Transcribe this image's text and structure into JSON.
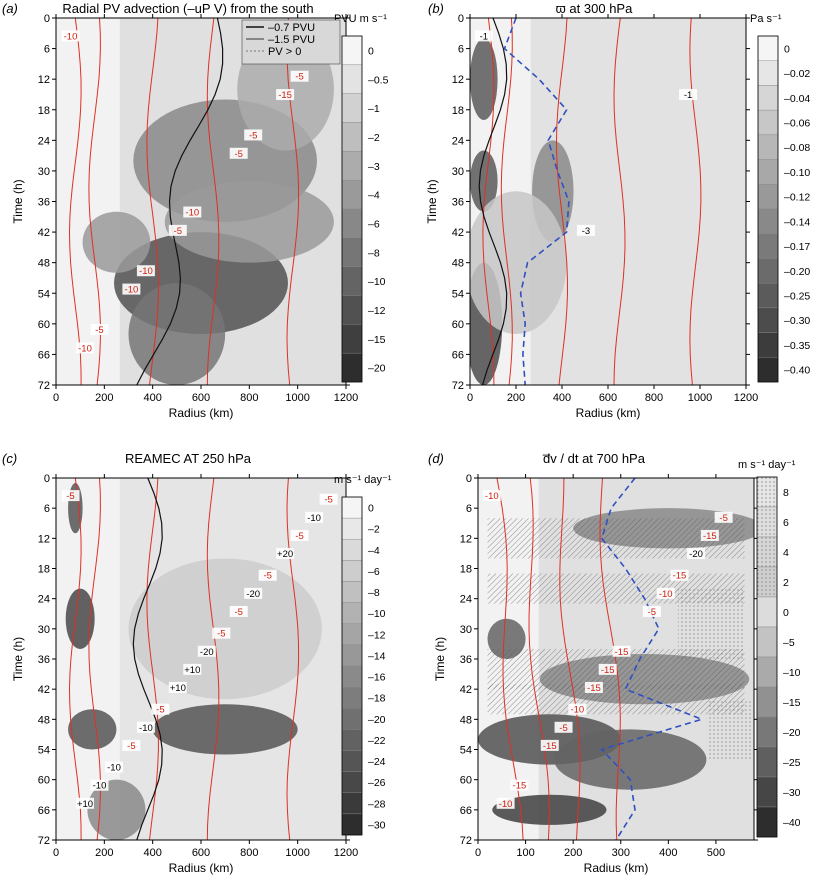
{
  "figure": "Four-panel time–radius Hovmöller diagrams",
  "chart_data": [
    {
      "type": "heatmap",
      "panel_label": "(a)",
      "title": "Radial PV advection (–uP V) from the south",
      "xlabel": "Radius (km)",
      "ylabel": "Time (h)",
      "x_ticks": [
        0,
        200,
        400,
        600,
        800,
        1000,
        1200
      ],
      "y_ticks": [
        0,
        6,
        12,
        18,
        24,
        30,
        36,
        42,
        48,
        54,
        60,
        66,
        72
      ],
      "xlim": [
        0,
        1200
      ],
      "ylim": [
        72,
        0
      ],
      "colorbar": {
        "unit": "PVU m s⁻¹",
        "levels": [
          "0",
          "–0.5",
          "–1",
          "–2",
          "–3",
          "–4",
          "–6",
          "–8",
          "–10",
          "–12",
          "–15",
          "–20"
        ]
      },
      "legend": [
        "–0.7 PVU",
        "–1.5 PVU",
        "PV > 0"
      ],
      "legend_position": "top-right",
      "contour_labels": [
        "-10",
        "-5",
        "-15",
        "-10",
        "-5",
        "-10",
        "-10",
        "-5",
        "-10",
        "-5",
        "-5"
      ],
      "shading_blobs": [
        {
          "x": 600,
          "y": 52,
          "rx": 360,
          "ry": 10,
          "level": 9
        },
        {
          "x": 700,
          "y": 28,
          "rx": 380,
          "ry": 12,
          "level": 6
        },
        {
          "x": 500,
          "y": 62,
          "rx": 200,
          "ry": 10,
          "level": 7
        },
        {
          "x": 950,
          "y": 14,
          "rx": 200,
          "ry": 12,
          "level": 4
        },
        {
          "x": 250,
          "y": 44,
          "rx": 140,
          "ry": 6,
          "level": 5
        },
        {
          "x": 800,
          "y": 40,
          "rx": 350,
          "ry": 8,
          "level": 5
        }
      ]
    },
    {
      "type": "heatmap",
      "panel_label": "(b)",
      "title": "ϖ at 300 hPa",
      "xlabel": "Radius (km)",
      "ylabel": "Time (h)",
      "x_ticks": [
        0,
        200,
        400,
        600,
        800,
        1000,
        1200
      ],
      "y_ticks": [
        0,
        6,
        12,
        18,
        24,
        30,
        36,
        42,
        48,
        54,
        60,
        66,
        72
      ],
      "xlim": [
        0,
        1200
      ],
      "ylim": [
        72,
        0
      ],
      "colorbar": {
        "unit": "Pa s⁻¹",
        "levels": [
          "0",
          "–0.02",
          "–0.04",
          "–0.06",
          "–0.08",
          "–0.10",
          "–0.12",
          "–0.14",
          "–0.17",
          "–0.20",
          "–0.25",
          "–0.30",
          "–0.35",
          "–0.40"
        ]
      },
      "contour_labels": [
        "-1",
        "-3",
        "-1"
      ],
      "rmw_line": {
        "time": [
          0,
          6,
          12,
          18,
          24,
          30,
          36,
          42,
          48,
          54,
          60,
          66,
          72
        ],
        "radius": [
          200,
          150,
          300,
          420,
          340,
          380,
          430,
          420,
          250,
          220,
          240,
          230,
          240
        ]
      },
      "shading_blobs": [
        {
          "x": 60,
          "y": 60,
          "rx": 80,
          "ry": 12,
          "level": 11
        },
        {
          "x": 60,
          "y": 32,
          "rx": 60,
          "ry": 6,
          "level": 10
        },
        {
          "x": 60,
          "y": 12,
          "rx": 60,
          "ry": 8,
          "level": 10
        },
        {
          "x": 360,
          "y": 34,
          "rx": 90,
          "ry": 10,
          "level": 7
        },
        {
          "x": 200,
          "y": 48,
          "rx": 220,
          "ry": 14,
          "level": 3
        }
      ]
    },
    {
      "type": "heatmap",
      "panel_label": "(c)",
      "title": "REAMEC AT 250 hPa",
      "xlabel": "Radius (km)",
      "ylabel": "Time (h)",
      "x_ticks": [
        0,
        200,
        400,
        600,
        800,
        1000,
        1200
      ],
      "y_ticks": [
        0,
        6,
        12,
        18,
        24,
        30,
        36,
        42,
        48,
        54,
        60,
        66,
        72
      ],
      "xlim": [
        0,
        1200
      ],
      "ylim": [
        72,
        0
      ],
      "colorbar": {
        "unit": "m s⁻¹ day⁻¹",
        "levels": [
          "0",
          "–2",
          "–4",
          "–6",
          "–8",
          "–10",
          "–12",
          "–14",
          "–16",
          "–18",
          "–20",
          "–22",
          "–24",
          "–26",
          "–28",
          "–30"
        ]
      },
      "contour_labels": [
        "-5",
        "+10",
        "+20",
        "-5",
        "-5",
        "+10",
        "+10",
        "-5",
        "-10",
        "-20",
        "-10",
        "-20",
        "-10",
        "-5",
        "-5",
        "-10",
        "-5",
        "-5"
      ],
      "shading_blobs": [
        {
          "x": 700,
          "y": 50,
          "rx": 300,
          "ry": 5,
          "level": 12
        },
        {
          "x": 100,
          "y": 28,
          "rx": 60,
          "ry": 6,
          "level": 13
        },
        {
          "x": 150,
          "y": 50,
          "rx": 100,
          "ry": 4,
          "level": 12
        },
        {
          "x": 80,
          "y": 6,
          "rx": 30,
          "ry": 5,
          "level": 12
        },
        {
          "x": 250,
          "y": 66,
          "rx": 120,
          "ry": 6,
          "level": 8
        },
        {
          "x": 700,
          "y": 30,
          "rx": 400,
          "ry": 14,
          "level": 3
        }
      ]
    },
    {
      "type": "heatmap",
      "panel_label": "(d)",
      "title": "d̅v / dt at 700 hPa",
      "xlabel": "Radius (km)",
      "ylabel": "Time (h)",
      "x_ticks": [
        0,
        100,
        200,
        300,
        400,
        500
      ],
      "y_ticks": [
        0,
        6,
        12,
        18,
        24,
        30,
        36,
        42,
        48,
        54,
        60,
        66,
        72
      ],
      "xlim": [
        0,
        580
      ],
      "ylim": [
        72,
        0
      ],
      "colorbar": {
        "unit": "m s⁻¹ day⁻¹",
        "levels": [
          "8",
          "6",
          "4",
          "2",
          "0",
          "–5",
          "–10",
          "–15",
          "–20",
          "–25",
          "–30",
          "–40"
        ]
      },
      "contour_labels": [
        "-10",
        "-15",
        "-20",
        "-15",
        "-5",
        "-10",
        "-15",
        "-15",
        "-5",
        "-10",
        "-15",
        "-15",
        "-5",
        "-10",
        "-15"
      ],
      "rmw_line": {
        "time": [
          0,
          6,
          12,
          18,
          24,
          30,
          36,
          42,
          48,
          54,
          60,
          66,
          72
        ],
        "radius": [
          330,
          280,
          260,
          310,
          350,
          380,
          340,
          310,
          470,
          260,
          320,
          330,
          290
        ]
      },
      "shading_blobs": [
        {
          "x": 150,
          "y": 52,
          "rx": 150,
          "ry": 5,
          "level": 9
        },
        {
          "x": 150,
          "y": 66,
          "rx": 120,
          "ry": 3,
          "level": 10
        },
        {
          "x": 320,
          "y": 56,
          "rx": 160,
          "ry": 6,
          "level": 8
        },
        {
          "x": 60,
          "y": 32,
          "rx": 40,
          "ry": 4,
          "level": 8
        },
        {
          "x": 350,
          "y": 40,
          "rx": 220,
          "ry": 5,
          "level": 6
        },
        {
          "x": 400,
          "y": 10,
          "rx": 200,
          "ry": 4,
          "level": 6
        }
      ]
    }
  ]
}
